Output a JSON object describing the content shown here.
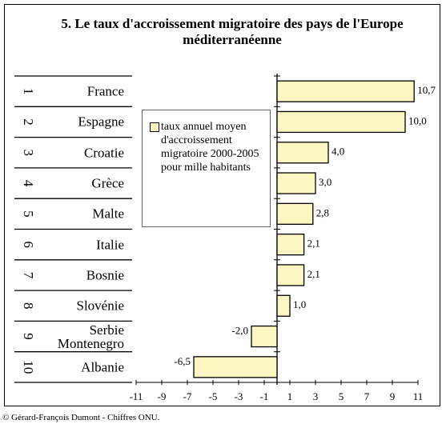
{
  "chart_data": {
    "type": "hbar",
    "title": "5. Le taux d'accroissement migratoire des pays de l'Europe méditerranéenne",
    "ranks": [
      1,
      2,
      3,
      4,
      5,
      6,
      7,
      8,
      9,
      10
    ],
    "categories": [
      "France",
      "Espagne",
      "Croatie",
      "Grèce",
      "Malte",
      "Italie",
      "Bosnie",
      "Slovénie",
      "Serbie Montenegro",
      "Albanie"
    ],
    "series": [
      {
        "name": "taux annuel moyen d'accroissement migratoire 2000-2005 pour mille habitants",
        "color": "#fbf6c2",
        "values": [
          10.7,
          10.0,
          4.0,
          3.0,
          2.8,
          2.1,
          2.1,
          1.0,
          -2.0,
          -6.5
        ],
        "value_labels": [
          "10,7",
          "10,0",
          "4,0",
          "3,0",
          "2,8",
          "2,1",
          "2,1",
          "1,0",
          "-2,0",
          "-6,5"
        ]
      }
    ],
    "xlim": [
      -11,
      11
    ],
    "xticks": [
      -11,
      -9,
      -7,
      -5,
      -3,
      -1,
      1,
      3,
      5,
      7,
      9,
      11
    ],
    "source": "© Gérard-François Dumont - Chiffres ONU."
  }
}
